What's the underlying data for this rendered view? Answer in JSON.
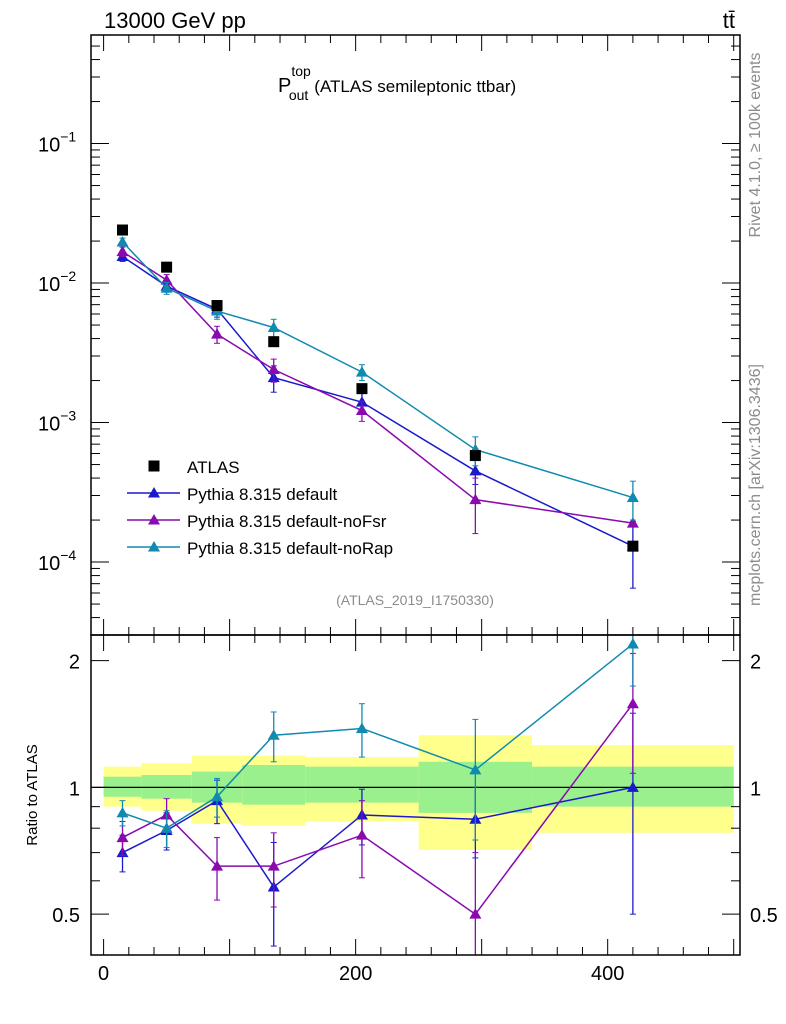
{
  "header": {
    "energy_label": "13000 GeV pp",
    "process_label": "tt̄"
  },
  "side_labels": {
    "rivet": "Rivet 4.1.0, ≥ 100k events",
    "mcplots": "mcplots.cern.ch [arXiv:1306.3436]"
  },
  "chart_data": {
    "type": "line",
    "title_main": "P",
    "title_sup": "top",
    "title_sub": "out",
    "title_rest": "(ATLAS semileptonic ttbar)",
    "analysis_label": "(ATLAS_2019_I1750330)",
    "ratio_ylabel": "Ratio to ATLAS",
    "xlim": [
      -10,
      505
    ],
    "main_ylim": [
      3e-05,
      0.6
    ],
    "main_yscale": "log",
    "ratio_ylim": [
      0.4,
      2.3
    ],
    "ratio_yscale": "log",
    "main_ticks": [
      {
        "value": 0.1,
        "base": "10",
        "exp": "−1"
      },
      {
        "value": 0.01,
        "base": "10",
        "exp": "−2"
      },
      {
        "value": 0.001,
        "base": "10",
        "exp": "−3"
      },
      {
        "value": 0.0001,
        "base": "10",
        "exp": "−4"
      }
    ],
    "ratio_ticks": [
      {
        "value": 2,
        "label": "2"
      },
      {
        "value": 1,
        "label": "1"
      },
      {
        "value": 0.5,
        "label": "0.5"
      }
    ],
    "x_ticks": [
      {
        "value": 0,
        "label": "0"
      },
      {
        "value": 200,
        "label": "200"
      },
      {
        "value": 400,
        "label": "400"
      }
    ],
    "bins": [
      {
        "lo": 0,
        "hi": 30
      },
      {
        "lo": 30,
        "hi": 70
      },
      {
        "lo": 70,
        "hi": 110
      },
      {
        "lo": 110,
        "hi": 160
      },
      {
        "lo": 160,
        "hi": 250
      },
      {
        "lo": 250,
        "hi": 340
      },
      {
        "lo": 340,
        "hi": 500
      }
    ],
    "data": {
      "name": "ATLAS",
      "color": "#000000",
      "x": [
        15,
        50,
        90,
        135,
        205,
        295,
        420
      ],
      "y": [
        0.024,
        0.013,
        0.0069,
        0.0038,
        0.00175,
        0.00058,
        0.00013
      ],
      "band_green": [
        [
          0.95,
          1.06
        ],
        [
          0.94,
          1.07
        ],
        [
          0.92,
          1.09
        ],
        [
          0.91,
          1.13
        ],
        [
          0.92,
          1.12
        ],
        [
          0.87,
          1.15
        ],
        [
          0.9,
          1.12
        ]
      ],
      "band_yellow": [
        [
          0.9,
          1.12
        ],
        [
          0.88,
          1.14
        ],
        [
          0.82,
          1.19
        ],
        [
          0.81,
          1.19
        ],
        [
          0.83,
          1.18
        ],
        [
          0.71,
          1.33
        ],
        [
          0.78,
          1.26
        ]
      ]
    },
    "series": [
      {
        "name": "Pythia 8.315 default",
        "color": "#1a1acc",
        "x": [
          15,
          50,
          90,
          135,
          205,
          295,
          420
        ],
        "y": [
          0.0155,
          0.0095,
          0.0065,
          0.0021,
          0.0014,
          0.00045,
          0.00013
        ],
        "yerr": [
          0.0012,
          0.0009,
          0.0008,
          0.00045,
          0.00022,
          9e-05,
          6.5e-05
        ],
        "ratio": [
          0.7,
          0.79,
          0.93,
          0.58,
          0.86,
          0.84,
          1.0
        ],
        "ratio_err": [
          0.07,
          0.08,
          0.11,
          0.16,
          0.13,
          0.16,
          0.5
        ]
      },
      {
        "name": "Pythia 8.315 default-noFsr",
        "color": "#8a0ab0",
        "x": [
          15,
          50,
          90,
          135,
          205,
          295,
          420
        ],
        "y": [
          0.0168,
          0.0105,
          0.0043,
          0.0024,
          0.00122,
          0.00028,
          0.00019
        ],
        "yerr": [
          0.0013,
          0.001,
          0.0006,
          0.00045,
          0.0002,
          0.00012,
          0.0
        ],
        "ratio": [
          0.76,
          0.86,
          0.65,
          0.65,
          0.77,
          0.5,
          1.58
        ],
        "ratio_err": [
          0.07,
          0.08,
          0.11,
          0.13,
          0.16,
          0.2,
          0.5
        ]
      },
      {
        "name": "Pythia 8.315 default-noRap",
        "color": "#118ab0",
        "x": [
          15,
          50,
          90,
          135,
          205,
          295,
          420
        ],
        "y": [
          0.0197,
          0.0092,
          0.0063,
          0.0048,
          0.0023,
          0.00064,
          0.00029
        ],
        "yerr": [
          0.0013,
          0.0009,
          0.0008,
          0.0007,
          0.0003,
          0.00015,
          9e-05
        ],
        "ratio": [
          0.87,
          0.8,
          0.95,
          1.33,
          1.38,
          1.1,
          2.19
        ],
        "ratio_err": [
          0.06,
          0.08,
          0.1,
          0.18,
          0.2,
          0.35,
          0.45
        ]
      }
    ]
  }
}
